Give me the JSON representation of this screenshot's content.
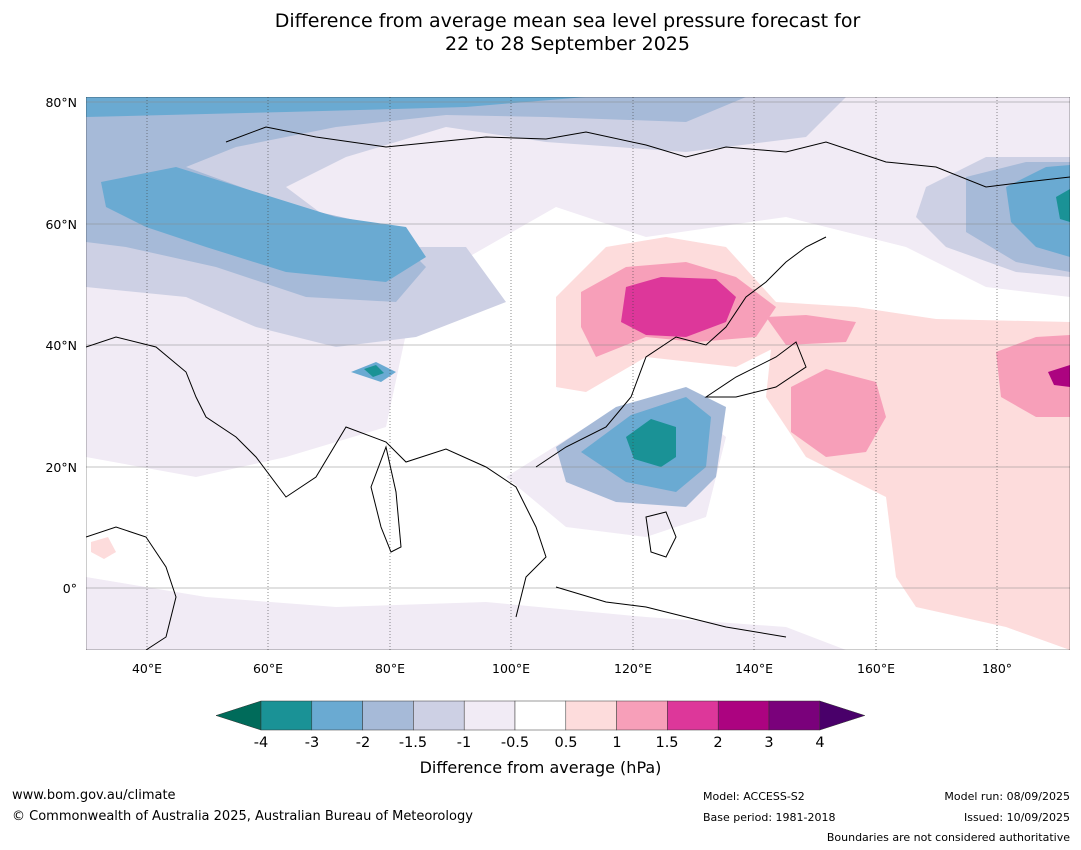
{
  "title": {
    "line1": "Difference from average mean sea level pressure forecast for",
    "line2": "22 to 28 September 2025"
  },
  "map": {
    "lat_labels": [
      "80°N",
      "60°N",
      "40°N",
      "20°N",
      "0°"
    ],
    "lon_labels": [
      "40°E",
      "60°E",
      "80°E",
      "100°E",
      "120°E",
      "140°E",
      "160°E",
      "180°"
    ],
    "extent": {
      "lon": [
        30,
        192
      ],
      "lat": [
        -10,
        81
      ]
    }
  },
  "colorbar": {
    "ticks": [
      "-4",
      "-3",
      "-2",
      "-1.5",
      "-1",
      "-0.5",
      "0.5",
      "1",
      "1.5",
      "2",
      "3",
      "4"
    ],
    "colors": {
      "below_min": "#006b5a",
      "bins": [
        "#1a9296",
        "#6aaad2",
        "#a6bad8",
        "#cdd0e4",
        "#f1ebf5",
        "#ffffff",
        "#fddcdc",
        "#f79fb9",
        "#dd379a",
        "#ac0380",
        "#7a017b"
      ],
      "above_max": "#49006a"
    },
    "label": "Difference from average (hPa)"
  },
  "footer": {
    "website": "www.bom.gov.au/climate",
    "copyright": "© Commonwealth of Australia 2025, Australian Bureau of Meteorology",
    "model": "Model: ACCESS-S2",
    "base_period": "Base period: 1981-2018",
    "model_run": "Model run: 08/09/2025",
    "issued": "Issued: 10/09/2025",
    "boundaries": "Boundaries are not considered authoritative"
  }
}
